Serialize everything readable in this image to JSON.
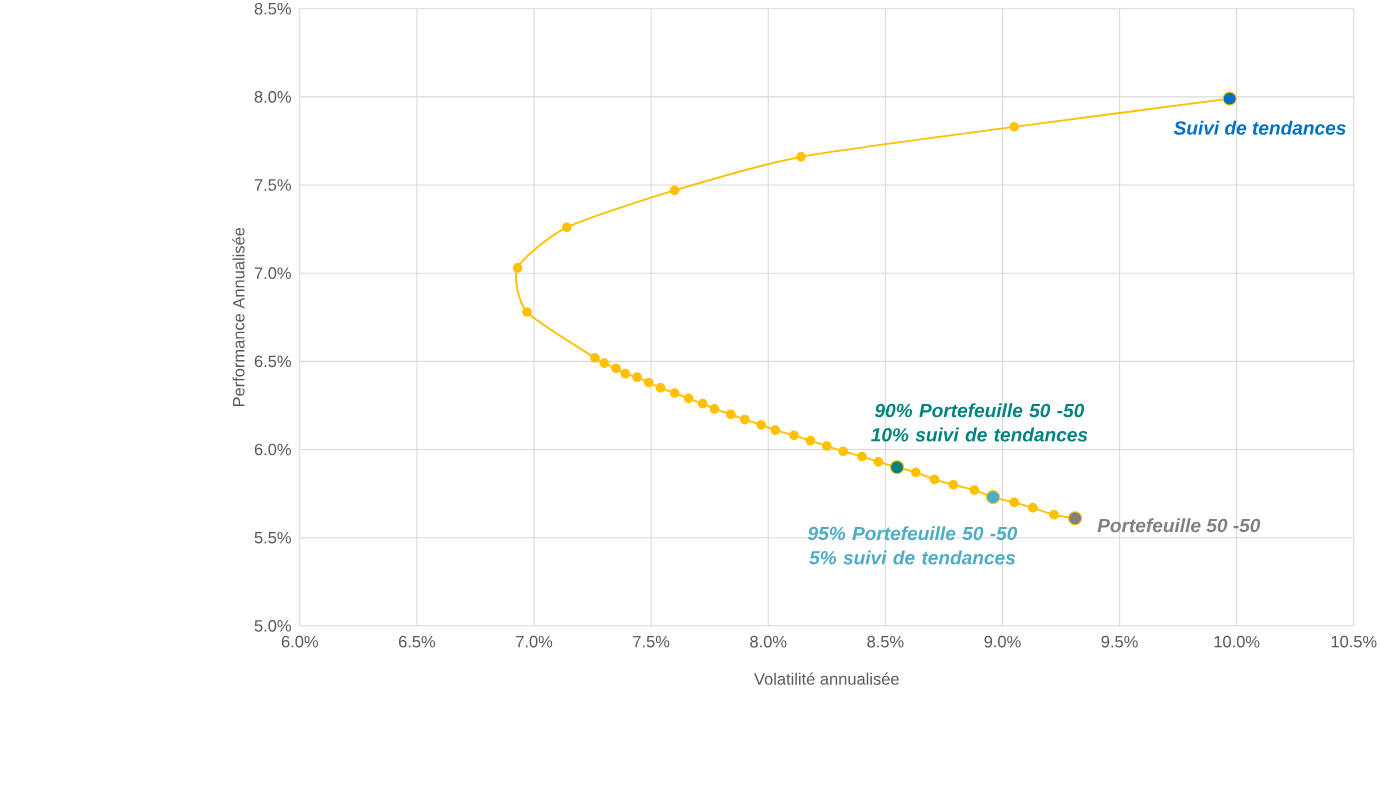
{
  "chart_data": {
    "type": "line",
    "xlabel": "Volatilité annualisée",
    "ylabel": "Performance Annualisée",
    "xlim": [
      6.0,
      10.5
    ],
    "ylim": [
      5.0,
      8.5
    ],
    "xticks": [
      {
        "value": 6.0,
        "label": "6.0%"
      },
      {
        "value": 6.5,
        "label": "6.5%"
      },
      {
        "value": 7.0,
        "label": "7.0%"
      },
      {
        "value": 7.5,
        "label": "7.5%"
      },
      {
        "value": 8.0,
        "label": "8.0%"
      },
      {
        "value": 8.5,
        "label": "8.5%"
      },
      {
        "value": 9.0,
        "label": "9.0%"
      },
      {
        "value": 9.5,
        "label": "9.5%"
      },
      {
        "value": 10.0,
        "label": "10.0%"
      },
      {
        "value": 10.5,
        "label": "10.5%"
      }
    ],
    "yticks": [
      {
        "value": 5.0,
        "label": "5.0%"
      },
      {
        "value": 5.5,
        "label": "5.5%"
      },
      {
        "value": 6.0,
        "label": "6.0%"
      },
      {
        "value": 6.5,
        "label": "6.5%"
      },
      {
        "value": 7.0,
        "label": "7.0%"
      },
      {
        "value": 7.5,
        "label": "7.5%"
      },
      {
        "value": 8.0,
        "label": "8.0%"
      },
      {
        "value": 8.5,
        "label": "8.5%"
      }
    ],
    "grid": true,
    "marker": "circle",
    "series": [
      {
        "color": "#ffc000",
        "x": [
          9.97,
          9.05,
          8.14,
          7.6,
          7.14,
          6.93,
          6.97,
          7.26,
          7.3,
          7.35,
          7.39,
          7.44,
          7.49,
          7.54,
          7.6,
          7.66,
          7.72,
          7.77,
          7.84,
          7.9,
          7.97,
          8.03,
          8.11,
          8.18,
          8.25,
          8.32,
          8.4,
          8.47,
          8.55,
          8.63,
          8.71,
          8.79,
          8.88,
          8.96,
          9.05,
          9.13,
          9.22,
          9.31
        ],
        "values": [
          7.99,
          7.83,
          7.66,
          7.47,
          7.26,
          7.03,
          6.78,
          6.52,
          6.49,
          6.46,
          6.43,
          6.41,
          6.38,
          6.35,
          6.32,
          6.29,
          6.26,
          6.23,
          6.2,
          6.17,
          6.14,
          6.11,
          6.08,
          6.05,
          6.02,
          5.99,
          5.96,
          5.93,
          5.9,
          5.87,
          5.83,
          5.8,
          5.77,
          5.73,
          5.7,
          5.67,
          5.63,
          5.61
        ]
      },
      {
        "type": "scatter",
        "name": "Suivi de tendances",
        "color": "#0070c0",
        "x": [
          9.97
        ],
        "values": [
          7.99
        ]
      },
      {
        "type": "scatter",
        "name": "90% Portefeuille 50 -50 10% suivi de tendances",
        "color": "#00827f",
        "x": [
          8.55
        ],
        "values": [
          5.9
        ]
      },
      {
        "type": "scatter",
        "name": "95% Portefeuille 50 -50 5% suivi de tendances",
        "color": "#4bacc6",
        "x": [
          8.96
        ],
        "values": [
          5.73
        ]
      },
      {
        "type": "scatter",
        "name": "Portefeuille 50 -50",
        "color": "#808080",
        "x": [
          9.31
        ],
        "values": [
          5.61
        ]
      }
    ]
  }
}
